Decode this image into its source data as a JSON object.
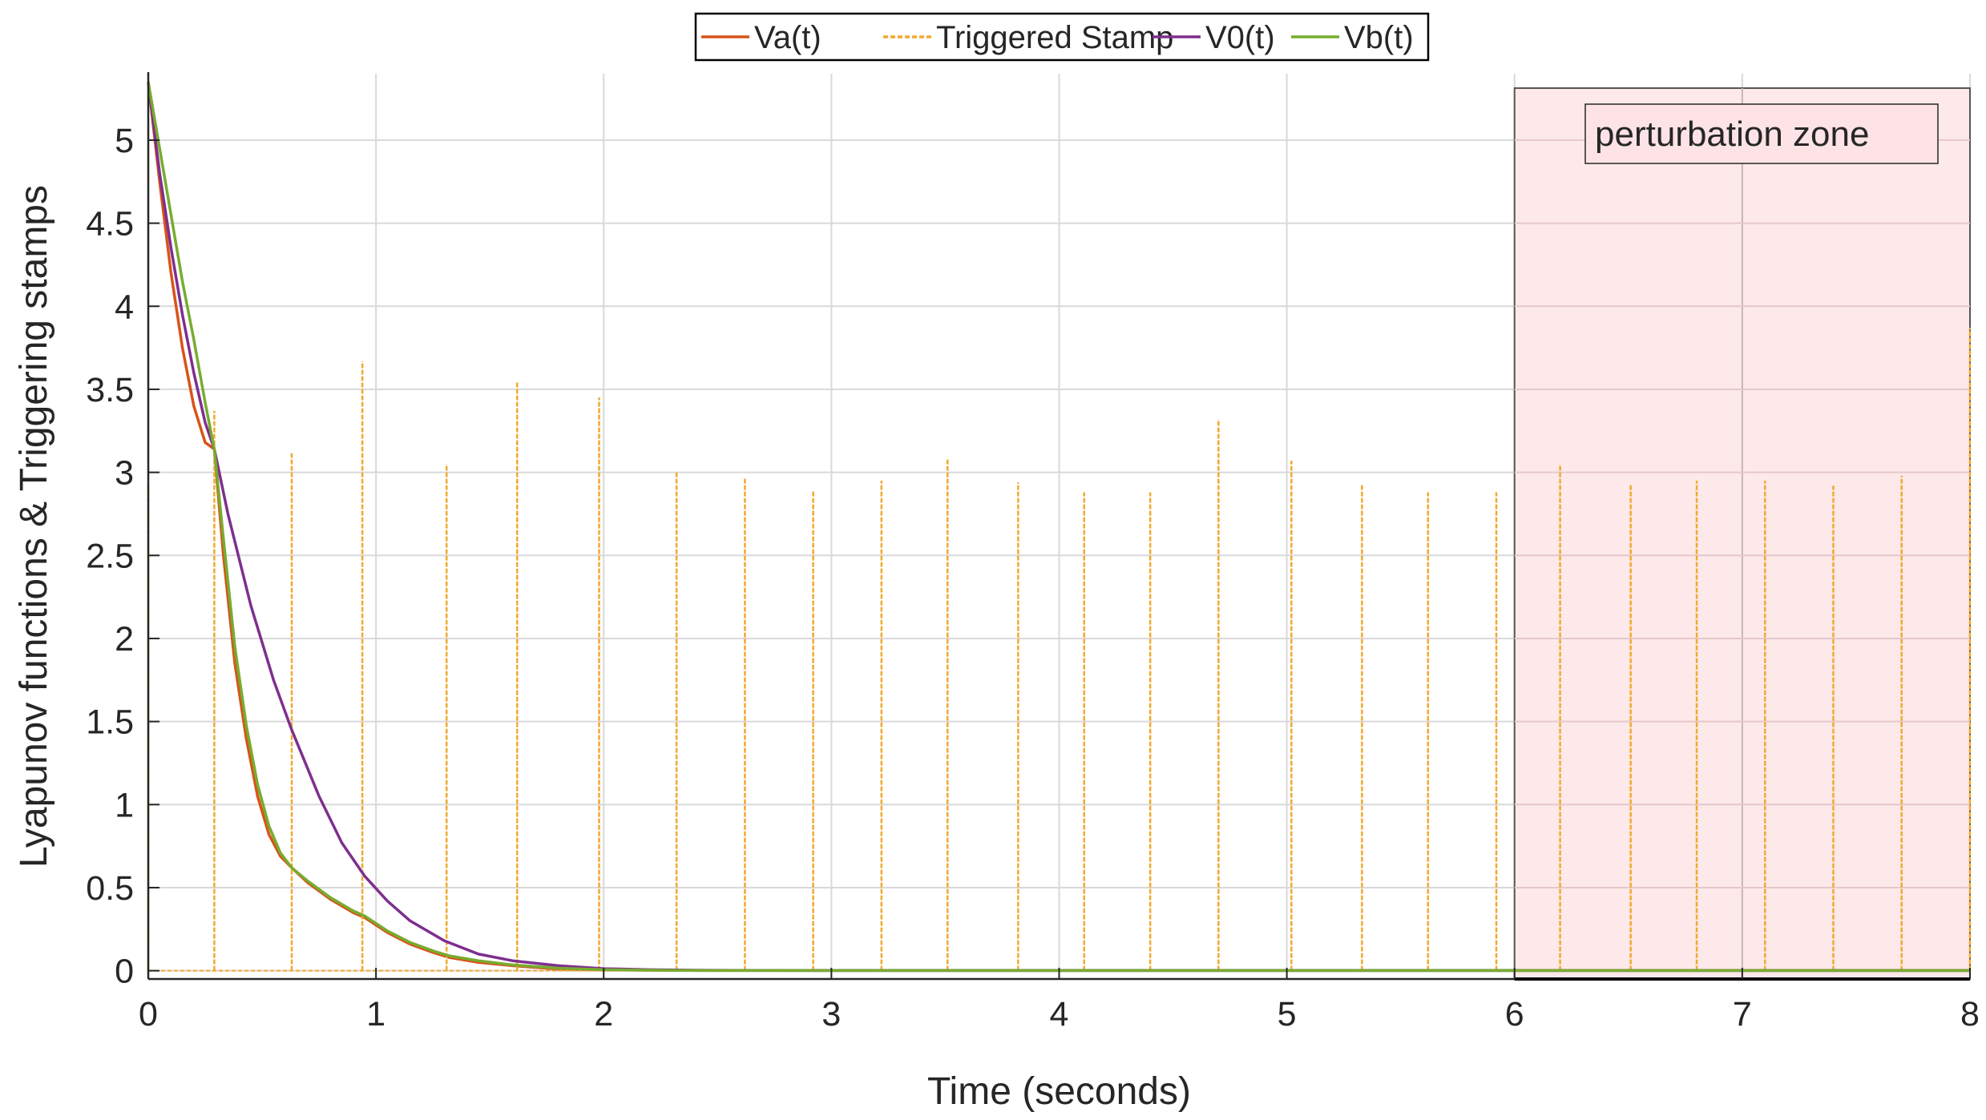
{
  "chart_data": {
    "type": "line",
    "title": "",
    "xlabel": "Time (seconds)",
    "ylabel": "Lyapunov functions & Triggering stamps",
    "xlim": [
      0,
      8
    ],
    "ylim": [
      -0.05,
      5.4
    ],
    "xticks": [
      0,
      1,
      2,
      3,
      4,
      5,
      6,
      7,
      8
    ],
    "xtick_labels": [
      "0",
      "1",
      "2",
      "3",
      "4",
      "5",
      "6",
      "7",
      "8"
    ],
    "yticks": [
      0,
      0.5,
      1,
      1.5,
      2,
      2.5,
      3,
      3.5,
      4,
      4.5,
      5
    ],
    "ytick_labels": [
      "0",
      "0.5",
      "1",
      "1.5",
      "2",
      "2.5",
      "3",
      "3.5",
      "4",
      "4.5",
      "5"
    ],
    "grid": true,
    "legend": {
      "placement": "top-center",
      "entries": [
        "Va(t)",
        "Triggered Stamp",
        "V0(t)",
        "Vb(t)"
      ]
    },
    "annotation": {
      "text": "perturbation zone",
      "x_range": [
        6,
        8
      ],
      "color": "#fde3e5"
    },
    "series": [
      {
        "name": "Va(t)",
        "color": "#d95319",
        "x": [
          0,
          0.05,
          0.1,
          0.15,
          0.2,
          0.25,
          0.29,
          0.33,
          0.38,
          0.43,
          0.48,
          0.53,
          0.58,
          0.63,
          0.7,
          0.8,
          0.9,
          0.95,
          1.05,
          1.15,
          1.25,
          1.32,
          1.45,
          1.6,
          1.8,
          2.0,
          2.3,
          2.6,
          3,
          4,
          5,
          6,
          7,
          8
        ],
        "y": [
          5.35,
          4.75,
          4.2,
          3.75,
          3.4,
          3.18,
          3.14,
          2.5,
          1.85,
          1.4,
          1.05,
          0.82,
          0.69,
          0.62,
          0.53,
          0.43,
          0.35,
          0.32,
          0.23,
          0.16,
          0.11,
          0.08,
          0.05,
          0.03,
          0.01,
          0.005,
          0.002,
          0.001,
          0.001,
          0.001,
          0.001,
          0.001,
          0.001,
          0.001
        ]
      },
      {
        "name": "Triggered Stamp",
        "color": "#f0a92e",
        "x": [
          0,
          0.29,
          0.63,
          0.94,
          1.31,
          1.62,
          1.98,
          2.32,
          2.62,
          2.92,
          3.22,
          3.51,
          3.82,
          4.11,
          4.4,
          4.7,
          5.02,
          5.33,
          5.62,
          5.92,
          6.2,
          6.51,
          6.8,
          7.1,
          7.4,
          7.7,
          8.0
        ],
        "y": [
          2.93,
          3.37,
          3.12,
          3.67,
          3.05,
          3.55,
          3.45,
          3.01,
          2.97,
          2.89,
          2.95,
          3.08,
          2.94,
          2.88,
          2.88,
          3.32,
          3.07,
          2.93,
          2.88,
          2.88,
          3.05,
          2.93,
          2.95,
          2.95,
          2.92,
          2.98,
          3.87
        ]
      },
      {
        "name": "V0(t)",
        "color": "#7e2f8e",
        "x": [
          0,
          0.05,
          0.1,
          0.15,
          0.2,
          0.25,
          0.29,
          0.35,
          0.45,
          0.55,
          0.63,
          0.75,
          0.85,
          0.95,
          1.05,
          1.15,
          1.3,
          1.45,
          1.6,
          1.8,
          2.0,
          2.2,
          2.4,
          2.6,
          3,
          4,
          5,
          6,
          7,
          8
        ],
        "y": [
          5.35,
          4.8,
          4.35,
          3.95,
          3.6,
          3.3,
          3.14,
          2.75,
          2.2,
          1.75,
          1.45,
          1.05,
          0.77,
          0.57,
          0.42,
          0.3,
          0.18,
          0.1,
          0.06,
          0.03,
          0.012,
          0.006,
          0.003,
          0.002,
          0.001,
          0.001,
          0.001,
          0.001,
          0.001,
          0.001
        ]
      },
      {
        "name": "Vb(t)",
        "color": "#77ac30",
        "x": [
          0,
          0.05,
          0.1,
          0.15,
          0.2,
          0.25,
          0.29,
          0.33,
          0.38,
          0.43,
          0.48,
          0.53,
          0.58,
          0.63,
          0.7,
          0.8,
          0.9,
          0.95,
          1.05,
          1.15,
          1.25,
          1.32,
          1.45,
          1.6,
          1.8,
          2.0,
          2.3,
          2.6,
          3,
          4,
          5,
          6,
          7,
          8
        ],
        "y": [
          5.35,
          4.95,
          4.55,
          4.15,
          3.8,
          3.42,
          3.14,
          2.6,
          1.95,
          1.48,
          1.12,
          0.87,
          0.71,
          0.62,
          0.54,
          0.44,
          0.36,
          0.33,
          0.24,
          0.17,
          0.12,
          0.09,
          0.06,
          0.035,
          0.015,
          0.006,
          0.002,
          0.001,
          0.001,
          0.001,
          0.001,
          0.001,
          0.001,
          0.001
        ]
      }
    ]
  }
}
